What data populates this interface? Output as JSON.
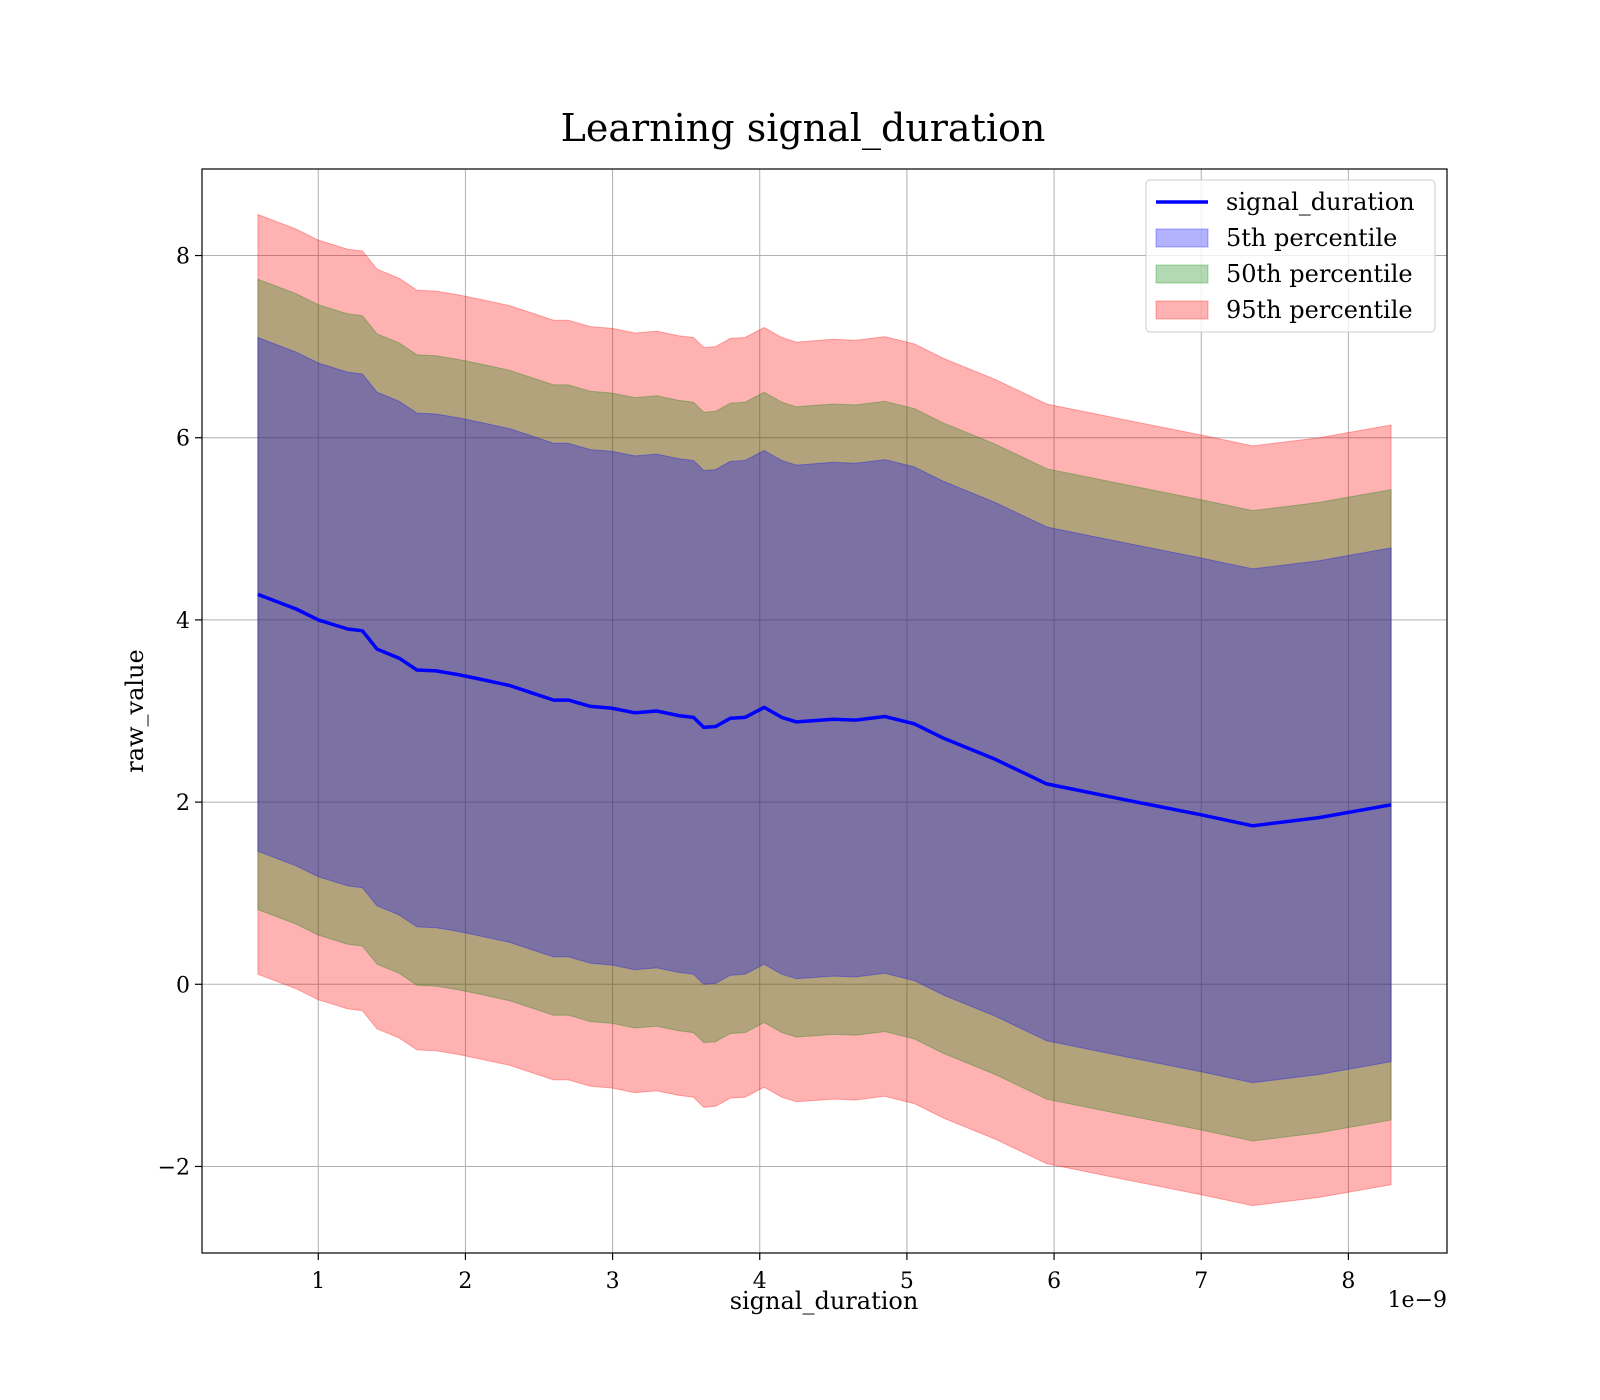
{
  "chart_data": {
    "type": "area",
    "title": "Learning signal_duration",
    "xlabel": "signal_duration",
    "ylabel": "raw_value",
    "x_offset_text": "1e−9",
    "xlim": [
      0.21,
      8.67
    ],
    "ylim": [
      -2.95,
      8.95
    ],
    "x_ticks": [
      1,
      2,
      3,
      4,
      5,
      6,
      7,
      8
    ],
    "y_ticks": [
      -2,
      0,
      2,
      4,
      6,
      8
    ],
    "grid": true,
    "legend_position": "top-right",
    "x": [
      0.59,
      0.72,
      0.85,
      1.0,
      1.1,
      1.2,
      1.3,
      1.4,
      1.55,
      1.67,
      1.8,
      1.95,
      2.1,
      2.3,
      2.45,
      2.6,
      2.7,
      2.85,
      3.0,
      3.15,
      3.3,
      3.45,
      3.55,
      3.62,
      3.7,
      3.8,
      3.9,
      4.03,
      4.15,
      4.25,
      4.5,
      4.65,
      4.85,
      5.05,
      5.25,
      5.6,
      5.95,
      6.5,
      7.0,
      7.35,
      7.8,
      8.29
    ],
    "series": [
      {
        "name": "signal_duration",
        "kind": "line",
        "color": "#0000ff",
        "values": [
          4.28,
          4.2,
          4.12,
          4.0,
          3.95,
          3.9,
          3.88,
          3.68,
          3.58,
          3.45,
          3.44,
          3.4,
          3.35,
          3.28,
          3.2,
          3.12,
          3.12,
          3.05,
          3.03,
          2.98,
          3.0,
          2.95,
          2.93,
          2.82,
          2.83,
          2.92,
          2.93,
          3.04,
          2.93,
          2.88,
          2.91,
          2.9,
          2.94,
          2.86,
          2.7,
          2.47,
          2.2,
          2.02,
          1.86,
          1.74,
          1.83,
          1.97
        ]
      },
      {
        "name": "5th percentile",
        "kind": "band",
        "color": "#0000ff",
        "spread": 2.82
      },
      {
        "name": "50th percentile",
        "kind": "band",
        "color": "#008000",
        "spread": 3.46
      },
      {
        "name": "95th percentile",
        "kind": "band",
        "color": "#ff0000",
        "spread": 4.17
      }
    ]
  }
}
